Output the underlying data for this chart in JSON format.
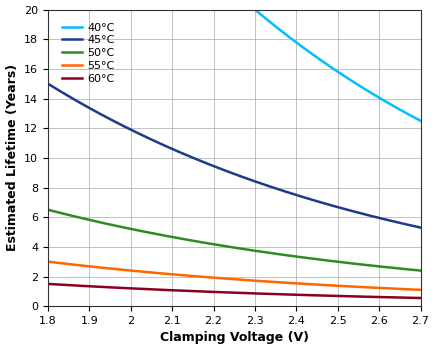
{
  "xlabel": "Clamping Voltage (V)",
  "ylabel": "Estimated Lifetime (Years)",
  "xlim": [
    1.8,
    2.7
  ],
  "ylim": [
    0,
    20
  ],
  "xticks": [
    1.8,
    1.9,
    2.0,
    2.1,
    2.2,
    2.3,
    2.4,
    2.5,
    2.6,
    2.7
  ],
  "yticks": [
    0,
    2,
    4,
    6,
    8,
    10,
    12,
    14,
    16,
    18,
    20
  ],
  "curves": [
    {
      "label": "40°C",
      "color": "#00BFFF",
      "x1": 2.3,
      "y1": 20.0,
      "x2": 2.7,
      "y2": 12.5,
      "clip_top": true
    },
    {
      "label": "45°C",
      "color": "#1E3A8A",
      "x1": 1.8,
      "y1": 15.0,
      "x2": 2.7,
      "y2": 5.3,
      "clip_top": false
    },
    {
      "label": "50°C",
      "color": "#2E8B22",
      "x1": 1.8,
      "y1": 6.5,
      "x2": 2.7,
      "y2": 2.4,
      "clip_top": false
    },
    {
      "label": "55°C",
      "color": "#FF6600",
      "x1": 1.8,
      "y1": 3.0,
      "x2": 2.7,
      "y2": 1.1,
      "clip_top": false
    },
    {
      "label": "60°C",
      "color": "#8B0020",
      "x1": 1.8,
      "y1": 1.5,
      "x2": 2.7,
      "y2": 0.55,
      "clip_top": false
    }
  ],
  "background_color": "#ffffff",
  "grid_color": "#aaaaaa",
  "legend_loc": "upper left",
  "linewidth": 1.8,
  "xlabel_fontsize": 9,
  "ylabel_fontsize": 9,
  "tick_fontsize": 8,
  "legend_fontsize": 8
}
